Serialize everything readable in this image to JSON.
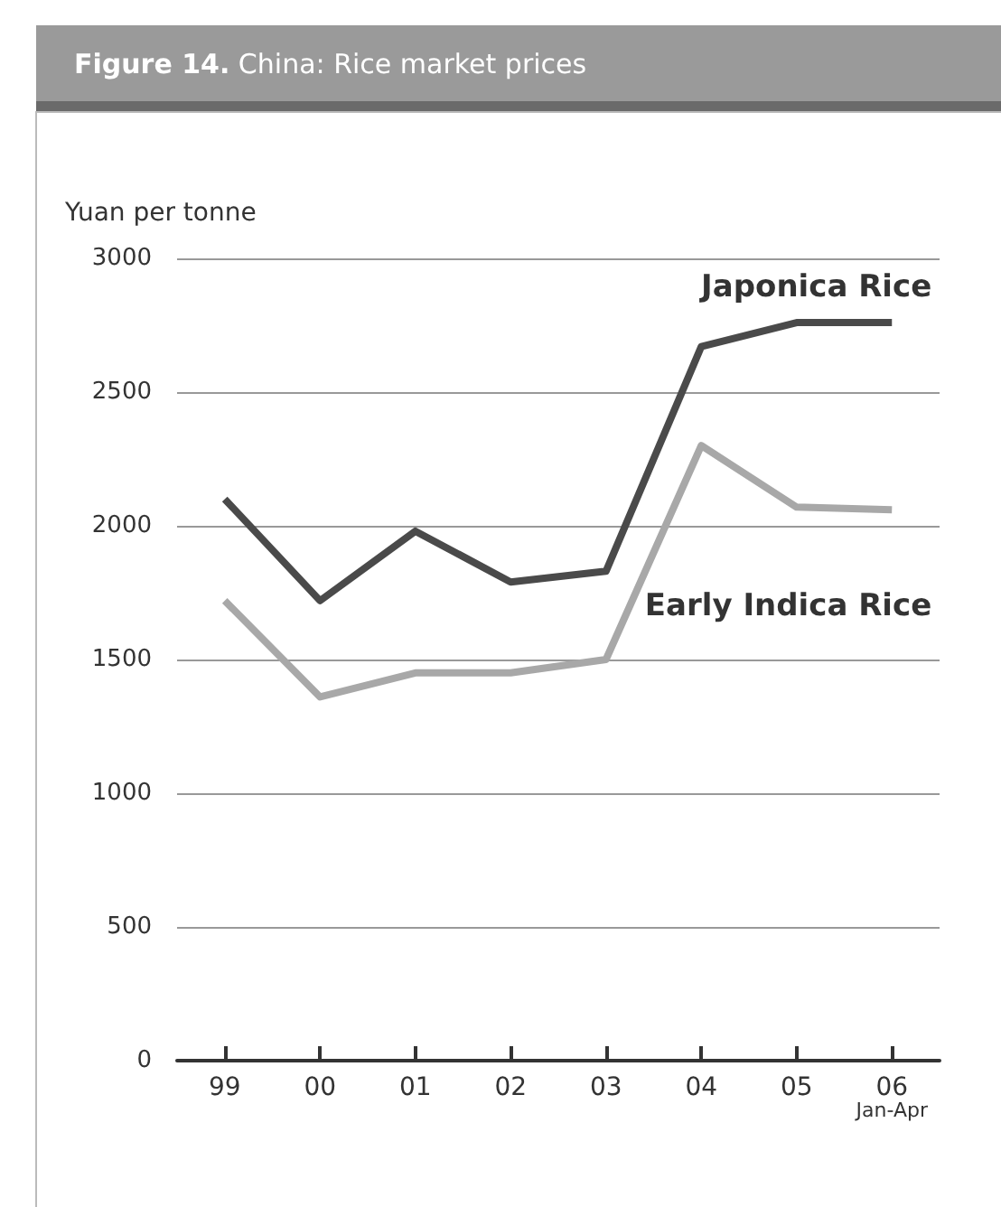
{
  "chart_data": {
    "type": "line",
    "title": "Figure 14. China: Rice market prices",
    "ylabel": "Yuan per tonne",
    "categories": [
      "99",
      "00",
      "01",
      "02",
      "03",
      "04",
      "05",
      "06\nJan-Apr"
    ],
    "series": [
      {
        "name": "Japonica Rice",
        "color": "#4a4a4a",
        "values": [
          2100,
          1720,
          1980,
          1790,
          1830,
          2670,
          2760,
          2760
        ]
      },
      {
        "name": "Early Indica Rice",
        "color": "#a8a8a8",
        "values": [
          1720,
          1360,
          1450,
          1450,
          1500,
          2300,
          2070,
          2060
        ]
      }
    ],
    "ylim": [
      0,
      3000
    ],
    "yticks": [
      0,
      500,
      1000,
      1500,
      2000,
      2500,
      3000
    ],
    "grid": "y",
    "marker": "none",
    "line_style": "solid",
    "legend": false
  }
}
